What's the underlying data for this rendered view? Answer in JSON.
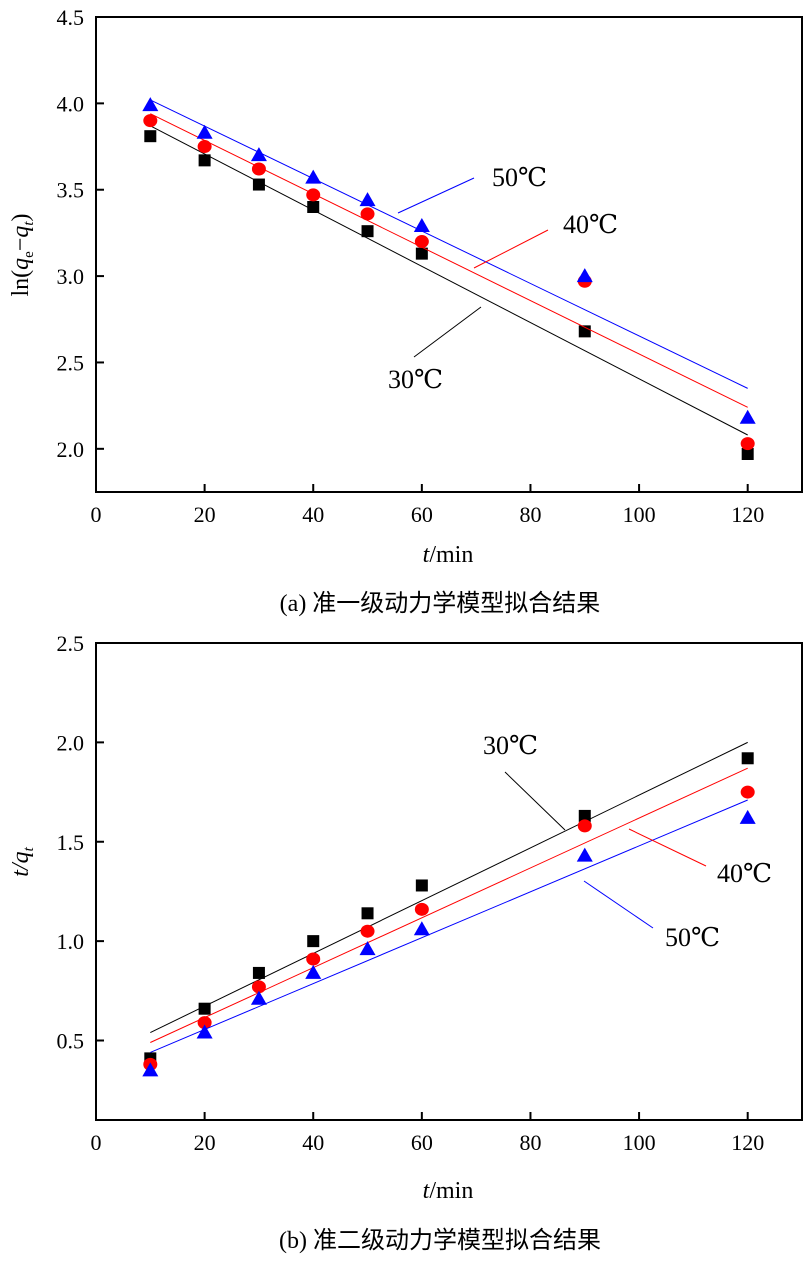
{
  "chart_data": [
    {
      "type": "scatter",
      "panel": "a",
      "caption": "(a) 准一级动力学模型拟合结果",
      "xlabel": "t/min",
      "ylabel": {
        "prefix": "ln(",
        "q1": "q",
        "sub1": "e",
        "minus": "−",
        "q2": "q",
        "sub2": "t",
        "suffix": ")"
      },
      "xlim": [
        0,
        130
      ],
      "ylim": [
        1.75,
        4.5
      ],
      "xticks": [
        0,
        20,
        40,
        60,
        80,
        100,
        120
      ],
      "yticks": [
        2.0,
        2.5,
        3.0,
        3.5,
        4.0,
        4.5
      ],
      "ytick_labels": [
        "2.0",
        "2.5",
        "3.0",
        "3.5",
        "4.0",
        "4.5"
      ],
      "grid": false,
      "x": [
        10,
        20,
        30,
        40,
        50,
        60,
        90,
        120
      ],
      "series": [
        {
          "name": "30℃",
          "marker": "square",
          "color": "#000000",
          "values": [
            3.81,
            3.67,
            3.53,
            3.4,
            3.26,
            3.13,
            2.68,
            1.97
          ],
          "fit": [
            [
              10,
              3.87
            ],
            [
              120,
              2.08
            ]
          ]
        },
        {
          "name": "40℃",
          "marker": "circle",
          "color": "#ff0000",
          "values": [
            3.9,
            3.75,
            3.62,
            3.47,
            3.36,
            3.2,
            2.97,
            2.03
          ],
          "fit": [
            [
              10,
              3.94
            ],
            [
              120,
              2.24
            ]
          ]
        },
        {
          "name": "50℃",
          "marker": "triangle",
          "color": "#0000ff",
          "values": [
            3.99,
            3.83,
            3.7,
            3.57,
            3.44,
            3.29,
            3.0,
            2.18
          ],
          "fit": [
            [
              10,
              4.02
            ],
            [
              120,
              2.35
            ]
          ]
        }
      ]
    },
    {
      "type": "scatter",
      "panel": "b",
      "caption": "(b) 准二级动力学模型拟合结果",
      "xlabel": "t/min",
      "ylabel": {
        "prefix": "t/",
        "q1": "q",
        "sub1": "t"
      },
      "xlim": [
        0,
        130
      ],
      "ylim": [
        0.1,
        2.5
      ],
      "xticks": [
        0,
        20,
        40,
        60,
        80,
        100,
        120
      ],
      "yticks": [
        0.5,
        1.0,
        1.5,
        2.0,
        2.5
      ],
      "ytick_labels": [
        "0.5",
        "1.0",
        "1.5",
        "2.0",
        "2.5"
      ],
      "grid": false,
      "x": [
        10,
        20,
        30,
        40,
        50,
        60,
        90,
        120
      ],
      "series": [
        {
          "name": "30℃",
          "marker": "square",
          "color": "#000000",
          "values": [
            0.41,
            0.66,
            0.84,
            1.0,
            1.14,
            1.28,
            1.63,
            1.92
          ],
          "fit": [
            [
              10,
              0.54
            ],
            [
              120,
              2.0
            ]
          ]
        },
        {
          "name": "40℃",
          "marker": "circle",
          "color": "#ff0000",
          "values": [
            0.38,
            0.59,
            0.77,
            0.91,
            1.05,
            1.16,
            1.58,
            1.75
          ],
          "fit": [
            [
              10,
              0.49
            ],
            [
              120,
              1.87
            ]
          ]
        },
        {
          "name": "50℃",
          "marker": "triangle",
          "color": "#0000ff",
          "values": [
            0.35,
            0.54,
            0.71,
            0.84,
            0.96,
            1.06,
            1.43,
            1.62
          ],
          "fit": [
            [
              10,
              0.44
            ],
            [
              120,
              1.71
            ]
          ]
        }
      ]
    }
  ]
}
